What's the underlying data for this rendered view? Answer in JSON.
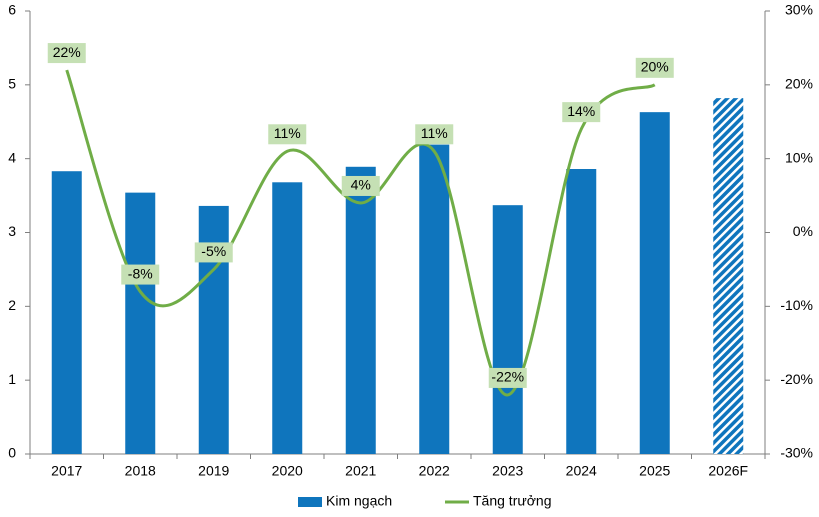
{
  "chart_data": {
    "type": "bar-line",
    "categories": [
      "2017",
      "2018",
      "2019",
      "2020",
      "2021",
      "2022",
      "2023",
      "2024",
      "2025",
      "2026F"
    ],
    "series": [
      {
        "name": "Kim ngạch",
        "type": "bar",
        "color": "#0f75bd",
        "values": [
          3.83,
          3.54,
          3.36,
          3.68,
          3.89,
          4.19,
          3.37,
          3.86,
          4.63,
          4.82
        ],
        "hatched": [
          false,
          false,
          false,
          false,
          false,
          false,
          false,
          false,
          false,
          true
        ]
      },
      {
        "name": "Tăng trưởng",
        "type": "line",
        "axis": "y2",
        "color": "#70ad47",
        "smooth": true,
        "values": [
          22,
          -8,
          -5,
          11,
          4,
          11,
          -22,
          14,
          20,
          null
        ],
        "value_labels": [
          "22%",
          "-8%",
          "-5%",
          "11%",
          "4%",
          "11%",
          "-22%",
          "14%",
          "20%",
          null
        ]
      }
    ],
    "ylim": [
      0,
      6
    ],
    "yticks": [
      0,
      1,
      2,
      3,
      4,
      5,
      6
    ],
    "y2lim": [
      -30,
      30
    ],
    "y2ticks": [
      {
        "value": -30,
        "label": "-30%"
      },
      {
        "value": -20,
        "label": "-20%"
      },
      {
        "value": -10,
        "label": "-10%"
      },
      {
        "value": 0,
        "label": "0%"
      },
      {
        "value": 10,
        "label": "10%"
      },
      {
        "value": 20,
        "label": "20%"
      },
      {
        "value": 30,
        "label": "30%"
      }
    ],
    "grid": false,
    "legend": "bottom"
  }
}
